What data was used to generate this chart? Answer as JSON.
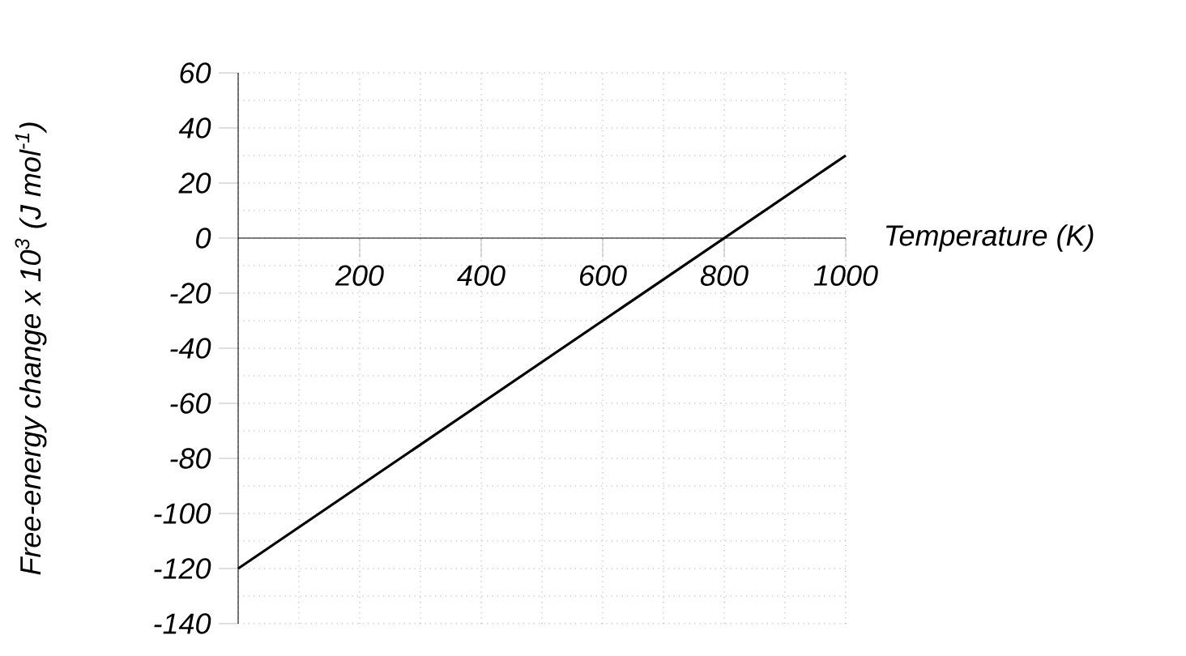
{
  "chart_data": {
    "type": "line",
    "xlabel": "Temperature (K)",
    "ylabel": "Free-energy change x 10$^{3}$ (J mol$^{-1}$)",
    "x": [
      0,
      1000
    ],
    "values": [
      -120,
      30
    ],
    "color": "#000000",
    "xlim": [
      0,
      1000
    ],
    "ylim": [
      -140,
      60
    ],
    "xticks": [
      200,
      400,
      600,
      800,
      1000
    ],
    "yticks": [
      -140,
      -120,
      -100,
      -80,
      -60,
      -40,
      -20,
      0,
      20,
      40,
      60
    ],
    "grid": true,
    "marker": "none",
    "line_style": "solid"
  }
}
